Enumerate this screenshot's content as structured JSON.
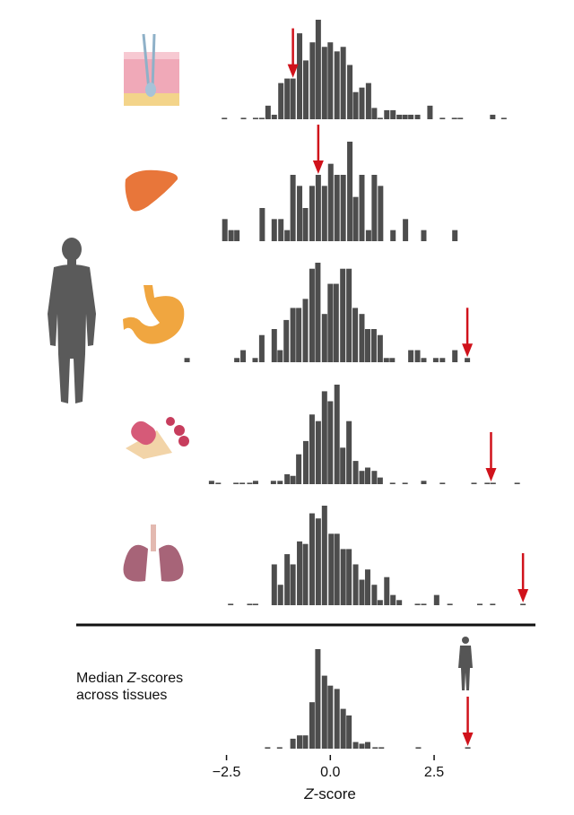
{
  "chart_data": {
    "type": "bar",
    "xlabel": "Z-score",
    "xlabel_italic_part": "Z",
    "xlabel_rest": "-score",
    "x_ticks": [
      -2.5,
      0.0,
      2.5
    ],
    "x_tick_labels": [
      "−2.5",
      "0.0",
      "2.5"
    ],
    "xlim": [
      -3.6,
      4.8
    ],
    "grid": false,
    "bar_color": "#4d4d4d",
    "arrow_color": "#d0121b",
    "panels": [
      {
        "icon": "skin-icon",
        "marked_z": -0.9,
        "bars": [
          [
            -2.55,
            0.3
          ],
          [
            -2.09,
            0.3
          ],
          [
            -1.8,
            0.3
          ],
          [
            -1.65,
            0.3
          ],
          [
            -1.5,
            3
          ],
          [
            -1.35,
            1
          ],
          [
            -1.19,
            8
          ],
          [
            -1.04,
            9
          ],
          [
            -0.9,
            9
          ],
          [
            -0.74,
            19
          ],
          [
            -0.59,
            13
          ],
          [
            -0.43,
            17
          ],
          [
            -0.29,
            22
          ],
          [
            -0.14,
            16
          ],
          [
            0.0,
            17
          ],
          [
            0.16,
            15
          ],
          [
            0.31,
            16
          ],
          [
            0.47,
            12
          ],
          [
            0.61,
            6
          ],
          [
            0.76,
            7
          ],
          [
            0.92,
            8
          ],
          [
            1.06,
            2.5
          ],
          [
            1.2,
            0.3
          ],
          [
            1.36,
            2
          ],
          [
            1.51,
            2
          ],
          [
            1.66,
            1
          ],
          [
            1.8,
            1
          ],
          [
            1.94,
            1
          ],
          [
            2.1,
            1
          ],
          [
            2.4,
            3
          ],
          [
            2.7,
            0.3
          ],
          [
            2.99,
            0.3
          ],
          [
            3.13,
            0.3
          ],
          [
            3.91,
            1
          ],
          [
            4.18,
            0.3
          ]
        ]
      },
      {
        "icon": "liver-icon",
        "marked_z": -0.29,
        "bars": [
          [
            -2.54,
            2
          ],
          [
            -2.39,
            1
          ],
          [
            -2.25,
            1
          ],
          [
            -1.64,
            3
          ],
          [
            -1.35,
            2
          ],
          [
            -1.19,
            2
          ],
          [
            -1.04,
            1
          ],
          [
            -0.9,
            6
          ],
          [
            -0.74,
            5
          ],
          [
            -0.6,
            3
          ],
          [
            -0.44,
            5
          ],
          [
            -0.29,
            6
          ],
          [
            -0.14,
            5
          ],
          [
            0.01,
            7
          ],
          [
            0.16,
            6
          ],
          [
            0.31,
            6
          ],
          [
            0.47,
            9
          ],
          [
            0.61,
            4
          ],
          [
            0.76,
            6
          ],
          [
            0.92,
            1
          ],
          [
            1.06,
            6
          ],
          [
            1.21,
            5
          ],
          [
            1.51,
            1
          ],
          [
            1.81,
            2
          ],
          [
            2.25,
            1
          ],
          [
            3.0,
            1
          ]
        ]
      },
      {
        "icon": "stomach-icon",
        "marked_z": 3.3,
        "bars": [
          [
            -3.45,
            0.7
          ],
          [
            -2.25,
            0.7
          ],
          [
            -2.1,
            2
          ],
          [
            -1.81,
            0.7
          ],
          [
            -1.65,
            4.5
          ],
          [
            -1.35,
            5.5
          ],
          [
            -1.21,
            2
          ],
          [
            -1.06,
            7
          ],
          [
            -0.9,
            9
          ],
          [
            -0.76,
            9
          ],
          [
            -0.6,
            10.5
          ],
          [
            -0.44,
            15.5
          ],
          [
            -0.3,
            16.5
          ],
          [
            -0.14,
            8
          ],
          [
            0.0,
            13
          ],
          [
            0.14,
            13
          ],
          [
            0.3,
            15.5
          ],
          [
            0.45,
            15.5
          ],
          [
            0.6,
            9
          ],
          [
            0.76,
            8
          ],
          [
            0.9,
            5.5
          ],
          [
            1.05,
            5.5
          ],
          [
            1.2,
            4.5
          ],
          [
            1.35,
            0.7
          ],
          [
            1.49,
            0.7
          ],
          [
            1.94,
            2
          ],
          [
            2.1,
            2
          ],
          [
            2.25,
            0.7
          ],
          [
            2.54,
            0.7
          ],
          [
            2.7,
            0.7
          ],
          [
            3.0,
            2
          ],
          [
            3.3,
            0.7
          ]
        ]
      },
      {
        "icon": "blood-cells-icon",
        "marked_z": 3.87,
        "bars": [
          [
            -2.86,
            1
          ],
          [
            -2.7,
            0.3
          ],
          [
            -2.27,
            0.3
          ],
          [
            -2.12,
            0.3
          ],
          [
            -1.94,
            0.3
          ],
          [
            -1.8,
            1
          ],
          [
            -1.37,
            1
          ],
          [
            -1.21,
            1
          ],
          [
            -1.04,
            3
          ],
          [
            -0.9,
            2.5
          ],
          [
            -0.76,
            9
          ],
          [
            -0.59,
            13
          ],
          [
            -0.44,
            21
          ],
          [
            -0.29,
            19
          ],
          [
            -0.14,
            28
          ],
          [
            0.0,
            25
          ],
          [
            0.16,
            30
          ],
          [
            0.3,
            11
          ],
          [
            0.45,
            19
          ],
          [
            0.61,
            7
          ],
          [
            0.76,
            4
          ],
          [
            0.9,
            5
          ],
          [
            1.06,
            4
          ],
          [
            1.2,
            2
          ],
          [
            1.5,
            0.3
          ],
          [
            1.8,
            0.3
          ],
          [
            2.25,
            1
          ],
          [
            2.7,
            0.3
          ],
          [
            3.46,
            0.3
          ],
          [
            3.78,
            0.3
          ],
          [
            3.92,
            0.3
          ],
          [
            4.5,
            0.3
          ]
        ]
      },
      {
        "icon": "lungs-icon",
        "marked_z": 4.64,
        "bars": [
          [
            -2.4,
            0.3
          ],
          [
            -1.94,
            0.3
          ],
          [
            -1.8,
            0.3
          ],
          [
            -1.35,
            8
          ],
          [
            -1.2,
            4
          ],
          [
            -1.04,
            10
          ],
          [
            -0.9,
            8
          ],
          [
            -0.74,
            12.5
          ],
          [
            -0.6,
            12
          ],
          [
            -0.44,
            18
          ],
          [
            -0.29,
            17
          ],
          [
            -0.14,
            19.5
          ],
          [
            0.02,
            14
          ],
          [
            0.16,
            14
          ],
          [
            0.31,
            11
          ],
          [
            0.45,
            11
          ],
          [
            0.61,
            8
          ],
          [
            0.76,
            5
          ],
          [
            0.9,
            7
          ],
          [
            1.06,
            4
          ],
          [
            1.2,
            1
          ],
          [
            1.36,
            5.5
          ],
          [
            1.51,
            2
          ],
          [
            1.66,
            1
          ],
          [
            2.1,
            0.3
          ],
          [
            2.25,
            0.3
          ],
          [
            2.56,
            2
          ],
          [
            2.88,
            0.3
          ],
          [
            3.6,
            0.3
          ],
          [
            3.91,
            0.3
          ],
          [
            4.64,
            0.3
          ]
        ]
      }
    ],
    "median_panel": {
      "label_line1_pre": "Median ",
      "label_line1_italic": "Z",
      "label_line1_post": "-scores",
      "label_line2": "across tissues",
      "icon": "human-silhouette-icon",
      "marked_z": 3.31,
      "bars": [
        [
          -1.51,
          0.3
        ],
        [
          -1.22,
          0.3
        ],
        [
          -0.9,
          3
        ],
        [
          -0.74,
          4
        ],
        [
          -0.6,
          4
        ],
        [
          -0.44,
          14
        ],
        [
          -0.3,
          30
        ],
        [
          -0.14,
          22
        ],
        [
          0.0,
          19
        ],
        [
          0.16,
          18
        ],
        [
          0.31,
          12
        ],
        [
          0.45,
          10
        ],
        [
          0.61,
          2
        ],
        [
          0.76,
          1.5
        ],
        [
          0.9,
          2
        ],
        [
          1.08,
          0.3
        ],
        [
          1.23,
          0.3
        ],
        [
          2.12,
          0.3
        ],
        [
          3.31,
          0.3
        ]
      ]
    }
  }
}
